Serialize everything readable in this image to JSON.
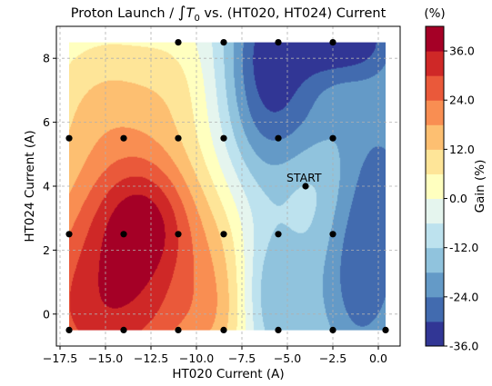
{
  "chart_data": {
    "type": "contour",
    "title_left": "Proton Launch / ",
    "title_integral": "∫",
    "title_var": "T",
    "title_sub": "0",
    "title_right": " vs. (HT020, HT024) Current",
    "xlabel": "HT020 Current (A)",
    "ylabel": "HT024 Current (A)",
    "xlim": [
      -17.7,
      1.2
    ],
    "ylim": [
      -1.0,
      9.0
    ],
    "xticks": [
      -17.5,
      -15.0,
      -12.5,
      -10.0,
      -7.5,
      -5.0,
      -2.5,
      0.0
    ],
    "xtick_labels": [
      "−17.5",
      "−15.0",
      "−12.5",
      "−10.0",
      "−7.5",
      "−5.0",
      "−2.5",
      "0.0"
    ],
    "yticks": [
      0,
      2,
      4,
      6,
      8
    ],
    "ytick_labels": [
      "0",
      "2",
      "4",
      "6",
      "8"
    ],
    "grid": true,
    "fill_extent": {
      "x": [
        -17.0,
        0.4
      ],
      "y": [
        -0.5,
        8.5
      ]
    },
    "colorbar": {
      "label": "Gain (%)",
      "unit_label": "(%)",
      "min": -36.0,
      "max": 42.0,
      "ticks": [
        -36.0,
        -24.0,
        -12.0,
        0.0,
        12.0,
        24.0,
        36.0
      ],
      "tick_labels": [
        "-36.0",
        "-24.0",
        "-12.0",
        "0.0",
        "12.0",
        "24.0",
        "36.0"
      ],
      "levels": [
        -36,
        -30,
        -24,
        -18,
        -12,
        -6,
        0,
        6,
        12,
        18,
        24,
        30,
        36,
        42
      ]
    },
    "colormap": [
      "#313695",
      "#4575b4",
      "#74add1",
      "#abd9e9",
      "#e0f3f8",
      "#ffffbf",
      "#fee090",
      "#fdae61",
      "#f46d43",
      "#d73027",
      "#a50026"
    ],
    "peak": {
      "x": -13.0,
      "y": 2.8,
      "value": 40
    },
    "points": [
      {
        "x": -11.0,
        "y": 8.5
      },
      {
        "x": -8.5,
        "y": 8.5
      },
      {
        "x": -5.5,
        "y": 8.5
      },
      {
        "x": -2.5,
        "y": 8.5
      },
      {
        "x": -17.0,
        "y": 5.5
      },
      {
        "x": -14.0,
        "y": 5.5
      },
      {
        "x": -11.0,
        "y": 5.5
      },
      {
        "x": -8.5,
        "y": 5.5
      },
      {
        "x": -5.5,
        "y": 5.5
      },
      {
        "x": -2.5,
        "y": 5.5
      },
      {
        "x": -4.0,
        "y": 4.0
      },
      {
        "x": -17.0,
        "y": 2.5
      },
      {
        "x": -14.0,
        "y": 2.5
      },
      {
        "x": -11.0,
        "y": 2.5
      },
      {
        "x": -8.5,
        "y": 2.5
      },
      {
        "x": -5.5,
        "y": 2.5
      },
      {
        "x": -2.5,
        "y": 2.5
      },
      {
        "x": -17.0,
        "y": -0.5
      },
      {
        "x": -14.0,
        "y": -0.5
      },
      {
        "x": -11.0,
        "y": -0.5
      },
      {
        "x": -8.5,
        "y": -0.5
      },
      {
        "x": -5.5,
        "y": -0.5
      },
      {
        "x": -2.5,
        "y": -0.5
      },
      {
        "x": 0.4,
        "y": -0.5
      }
    ],
    "annotation": {
      "text": "START",
      "x": -4.0,
      "y": 4.0
    }
  }
}
